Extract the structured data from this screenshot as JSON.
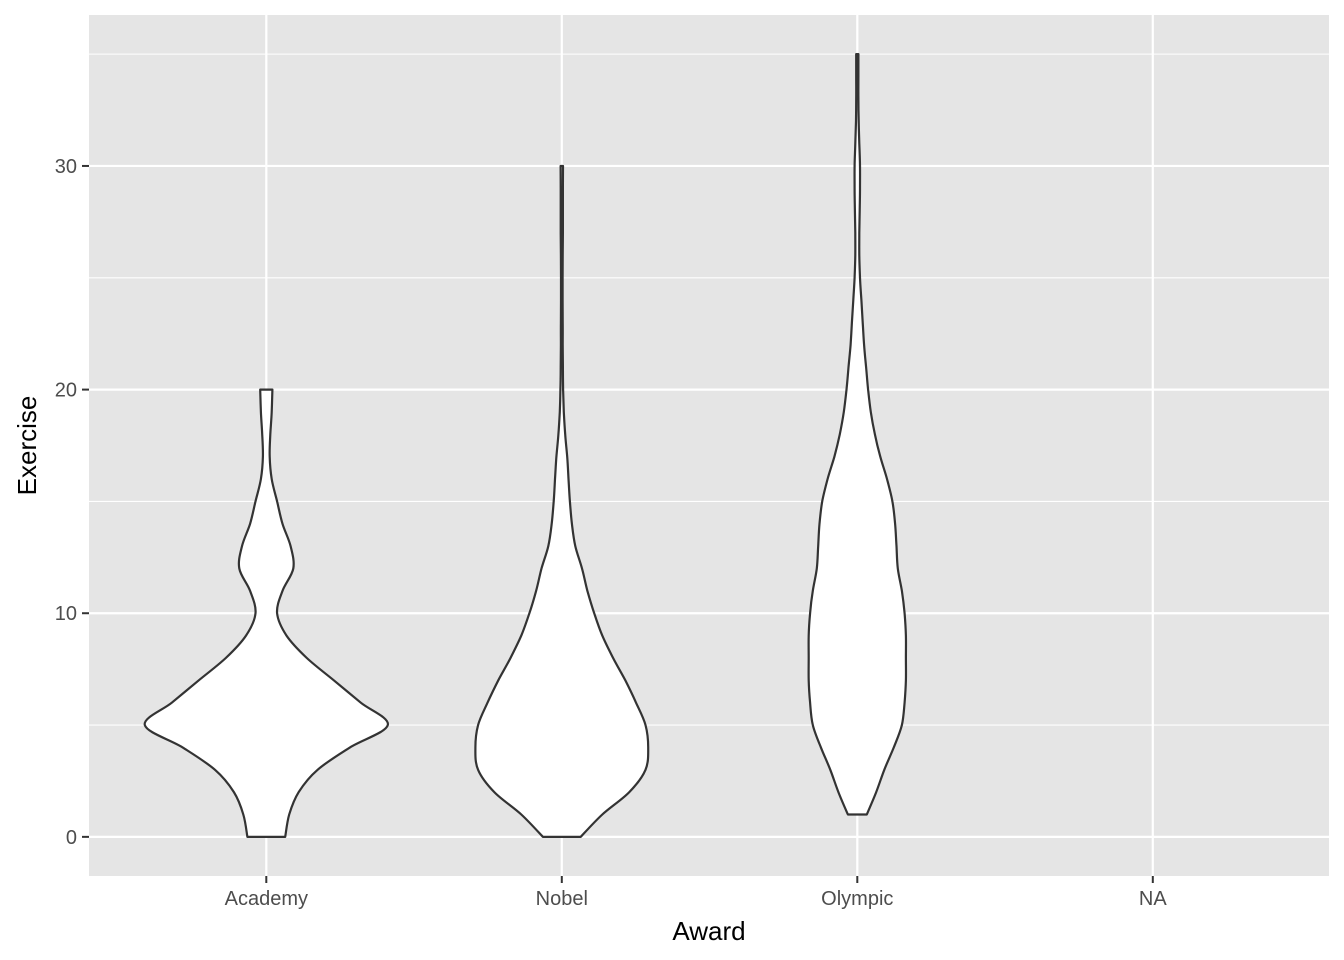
{
  "chart_data": {
    "type": "violin",
    "xlabel": "Award",
    "ylabel": "Exercise",
    "categories": [
      "Academy",
      "Nobel",
      "Olympic",
      "NA"
    ],
    "ylim": [
      -1.75,
      36.75
    ],
    "yticks": [
      0,
      10,
      20,
      30
    ],
    "grid": true,
    "legend": "none",
    "colors": {
      "panel": "#e5e5e5",
      "grid": "#ffffff",
      "fill": "#ffffff",
      "outline": "#333333",
      "tick_text": "#4d4d4d"
    },
    "series": [
      {
        "category": "Academy",
        "min": 0,
        "max": 20,
        "profile": [
          [
            0,
            0.14
          ],
          [
            1,
            0.17
          ],
          [
            2,
            0.24
          ],
          [
            3,
            0.38
          ],
          [
            4,
            0.62
          ],
          [
            5,
            0.9
          ],
          [
            6,
            0.7
          ],
          [
            7,
            0.5
          ],
          [
            8,
            0.3
          ],
          [
            9,
            0.15
          ],
          [
            10,
            0.08
          ],
          [
            11,
            0.12
          ],
          [
            12,
            0.2
          ],
          [
            13,
            0.18
          ],
          [
            14,
            0.12
          ],
          [
            15,
            0.08
          ],
          [
            16,
            0.04
          ],
          [
            17,
            0.025
          ],
          [
            18,
            0.03
          ],
          [
            19,
            0.04
          ],
          [
            20,
            0.045
          ]
        ]
      },
      {
        "category": "Nobel",
        "min": 0,
        "max": 30,
        "profile": [
          [
            0,
            0.14
          ],
          [
            1,
            0.3
          ],
          [
            2,
            0.5
          ],
          [
            3,
            0.62
          ],
          [
            4,
            0.64
          ],
          [
            5,
            0.62
          ],
          [
            6,
            0.55
          ],
          [
            7,
            0.47
          ],
          [
            8,
            0.38
          ],
          [
            9,
            0.3
          ],
          [
            10,
            0.24
          ],
          [
            11,
            0.19
          ],
          [
            12,
            0.15
          ],
          [
            13,
            0.1
          ],
          [
            14,
            0.075
          ],
          [
            15,
            0.06
          ],
          [
            16,
            0.05
          ],
          [
            17,
            0.04
          ],
          [
            18,
            0.025
          ],
          [
            19,
            0.015
          ],
          [
            20,
            0.01
          ],
          [
            21,
            0.008
          ],
          [
            22,
            0.007
          ],
          [
            23,
            0.007
          ],
          [
            24,
            0.006
          ],
          [
            25,
            0.006
          ],
          [
            26,
            0.007
          ],
          [
            27,
            0.008
          ],
          [
            28,
            0.008
          ],
          [
            29,
            0.008
          ],
          [
            30,
            0.009
          ]
        ]
      },
      {
        "category": "Olympic",
        "min": 1,
        "max": 35,
        "profile": [
          [
            1,
            0.07
          ],
          [
            2,
            0.14
          ],
          [
            3,
            0.2
          ],
          [
            4,
            0.27
          ],
          [
            5,
            0.33
          ],
          [
            6,
            0.35
          ],
          [
            7,
            0.36
          ],
          [
            8,
            0.36
          ],
          [
            9,
            0.36
          ],
          [
            10,
            0.35
          ],
          [
            11,
            0.33
          ],
          [
            12,
            0.3
          ],
          [
            13,
            0.29
          ],
          [
            14,
            0.28
          ],
          [
            15,
            0.26
          ],
          [
            16,
            0.22
          ],
          [
            17,
            0.17
          ],
          [
            18,
            0.13
          ],
          [
            19,
            0.1
          ],
          [
            20,
            0.08
          ],
          [
            21,
            0.065
          ],
          [
            22,
            0.05
          ],
          [
            23,
            0.04
          ],
          [
            24,
            0.03
          ],
          [
            25,
            0.02
          ],
          [
            26,
            0.015
          ],
          [
            27,
            0.015
          ],
          [
            28,
            0.018
          ],
          [
            29,
            0.02
          ],
          [
            30,
            0.02
          ],
          [
            31,
            0.015
          ],
          [
            32,
            0.01
          ],
          [
            33,
            0.008
          ],
          [
            34,
            0.008
          ],
          [
            35,
            0.008
          ]
        ]
      }
    ]
  }
}
